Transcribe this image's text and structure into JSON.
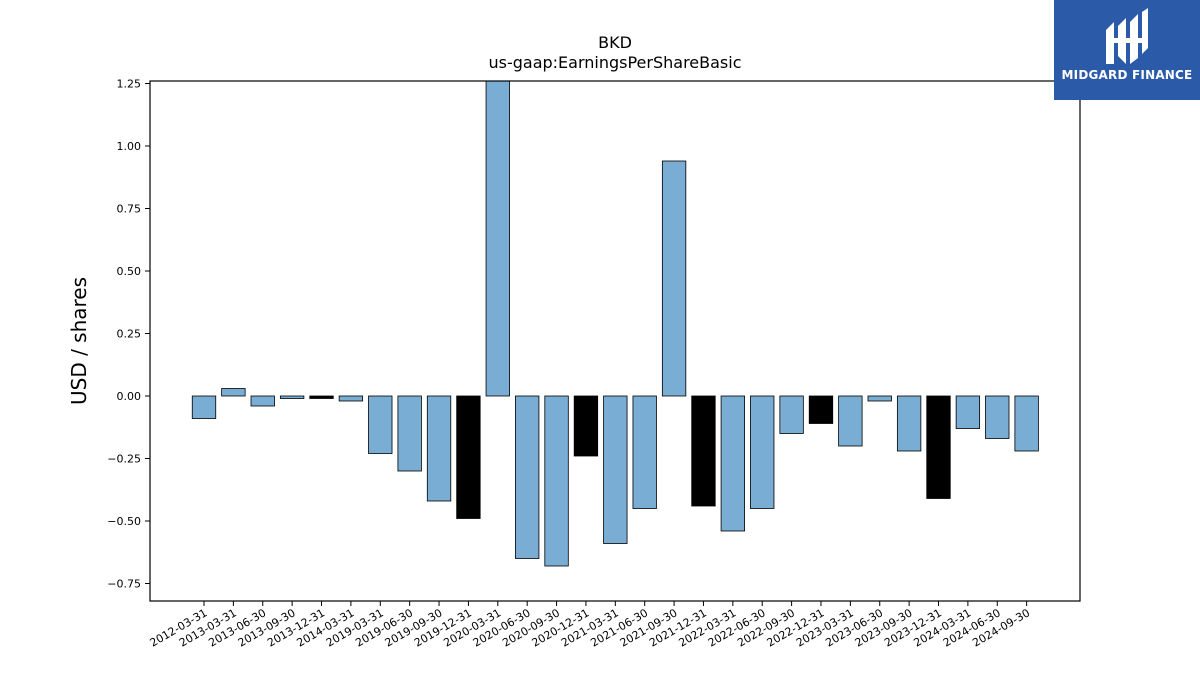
{
  "brand": {
    "name": "MIDGARD FINANCE",
    "logo_icon": "midgard-logo-icon",
    "background": "#2b5aa8"
  },
  "chart_data": {
    "type": "bar",
    "title": "BKD",
    "subtitle": "us-gaap:EarningsPerShareBasic",
    "xlabel": "",
    "ylabel": "USD / shares",
    "ylim": [
      -0.82,
      1.26
    ],
    "yticks": [
      "1.25",
      "1.00",
      "0.75",
      "0.50",
      "0.25",
      "0.00",
      "−0.25",
      "−0.50",
      "−0.75"
    ],
    "ytick_values": [
      1.25,
      1.0,
      0.75,
      0.5,
      0.25,
      0.0,
      -0.25,
      -0.5,
      -0.75
    ],
    "grid": false,
    "colors": {
      "quarter": "#7aadd4",
      "year_end": "#000000",
      "edge": "#000000"
    },
    "categories": [
      "2012-03-31",
      "2013-03-31",
      "2013-06-30",
      "2013-09-30",
      "2013-12-31",
      "2014-03-31",
      "2019-03-31",
      "2019-06-30",
      "2019-09-30",
      "2019-12-31",
      "2020-03-31",
      "2020-06-30",
      "2020-09-30",
      "2020-12-31",
      "2021-03-31",
      "2021-06-30",
      "2021-09-30",
      "2021-12-31",
      "2022-03-31",
      "2022-06-30",
      "2022-09-30",
      "2022-12-31",
      "2023-03-31",
      "2023-06-30",
      "2023-09-30",
      "2023-12-31",
      "2024-03-31",
      "2024-06-30",
      "2024-09-30"
    ],
    "values": [
      -0.09,
      0.03,
      -0.04,
      -0.01,
      -0.01,
      -0.02,
      -0.23,
      -0.3,
      -0.42,
      -0.49,
      1.26,
      -0.65,
      -0.68,
      -0.24,
      -0.59,
      -0.45,
      0.94,
      -0.44,
      -0.54,
      -0.45,
      -0.15,
      -0.11,
      -0.2,
      -0.02,
      -0.22,
      -0.41,
      -0.13,
      -0.17,
      -0.22
    ],
    "year_end": [
      false,
      false,
      false,
      false,
      true,
      false,
      false,
      false,
      false,
      true,
      false,
      false,
      false,
      true,
      false,
      false,
      false,
      true,
      false,
      false,
      false,
      true,
      false,
      false,
      false,
      true,
      false,
      false,
      false
    ]
  }
}
